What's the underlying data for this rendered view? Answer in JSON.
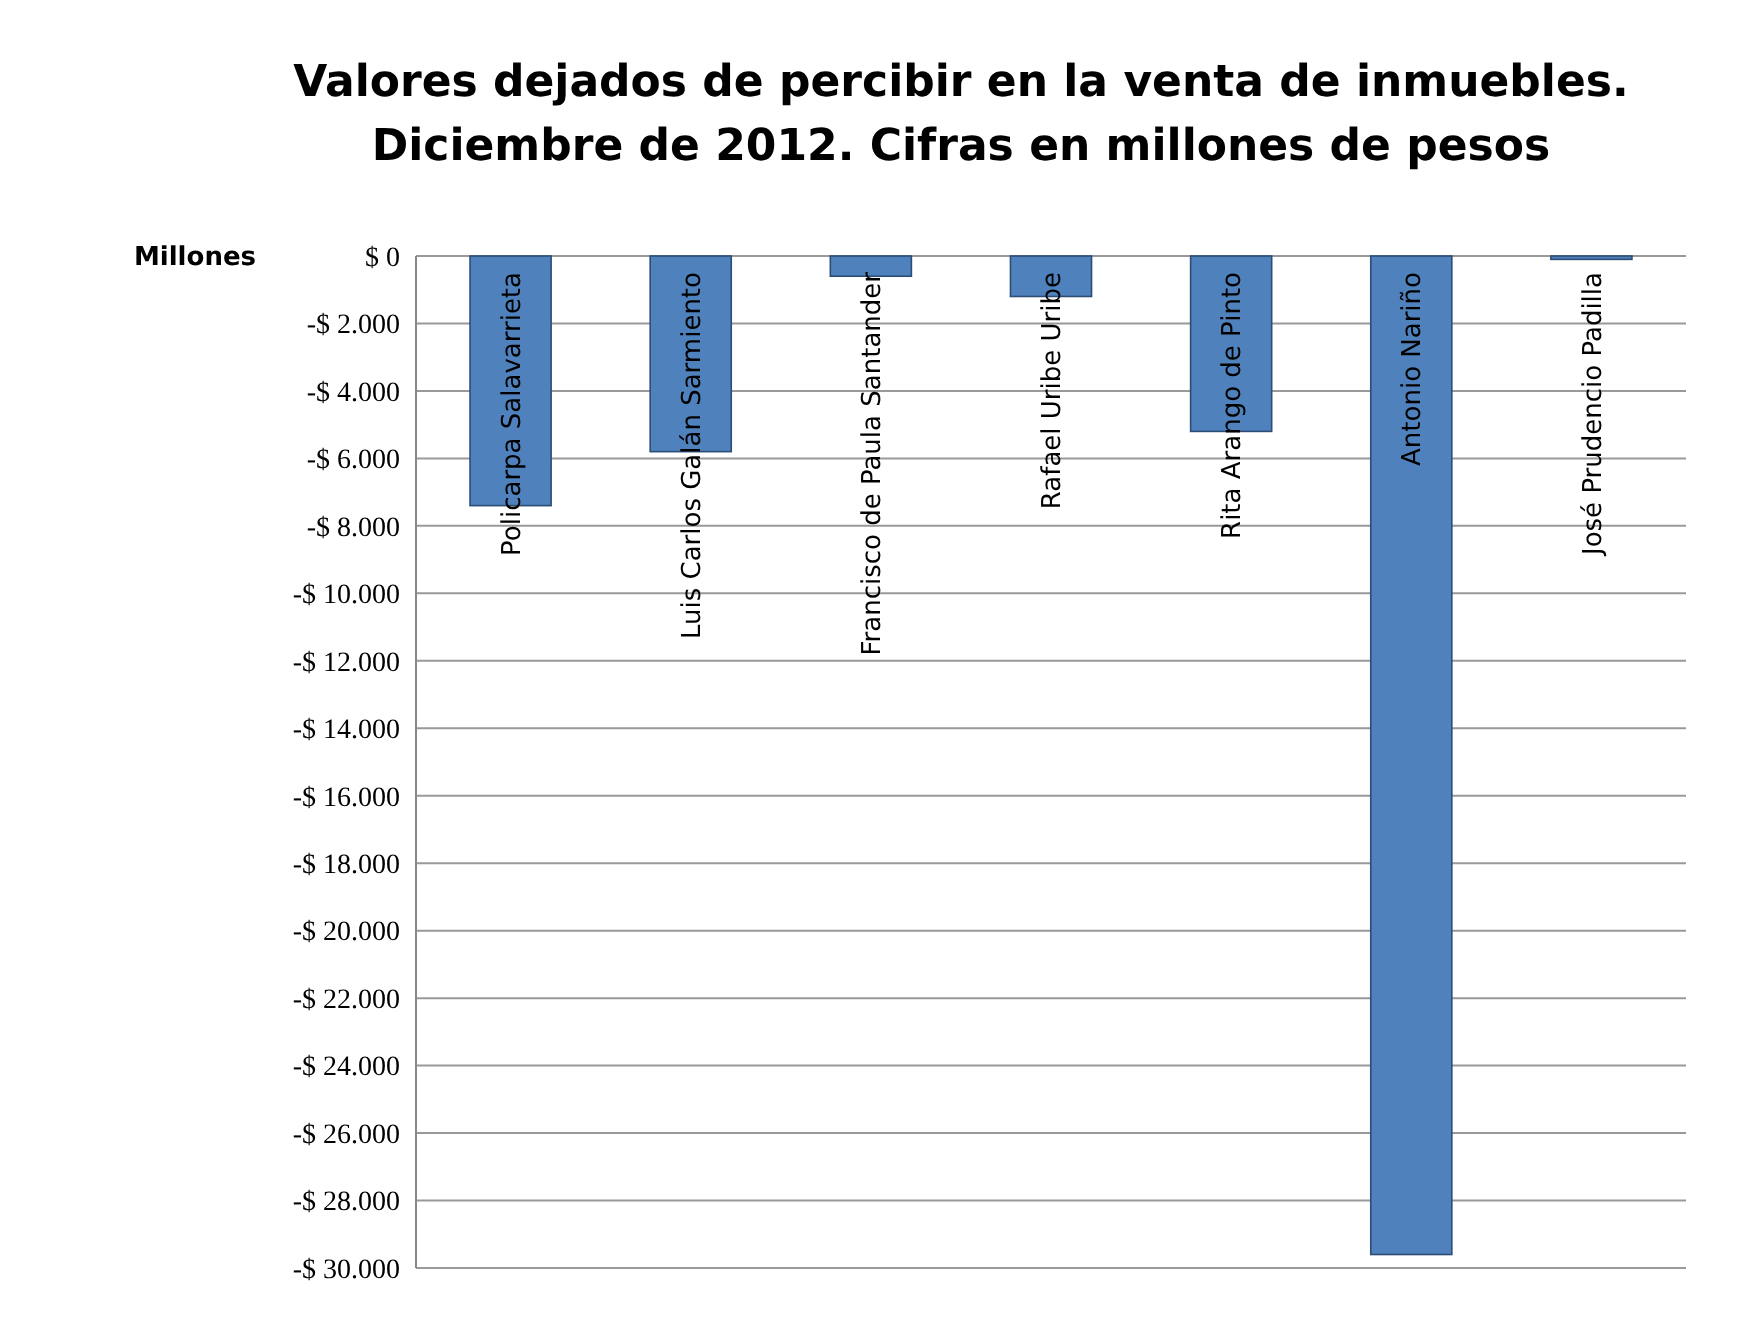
{
  "chart_data": {
    "type": "bar",
    "title": "Valores dejados de percibir en la venta de inmuebles. Diciembre de 2012. Cifras en millones de pesos",
    "ylabel": "Millones",
    "categories": [
      "Policarpa Salavarrieta",
      "Luis Carlos Galán Sarmiento",
      "Francisco de Paula Santander",
      "Rafael Uribe Uribe",
      "Rita Arango de Pinto",
      "Antonio Nariño",
      "José Prudencio Padilla"
    ],
    "values": [
      -7400,
      -5800,
      -600,
      -1200,
      -5200,
      -29600,
      -100
    ],
    "color": "#4f81bd",
    "ylim": [
      -30000,
      0
    ],
    "yticks": [
      {
        "value": 0,
        "label": "$ 0"
      },
      {
        "value": -2000,
        "label": "-$ 2.000"
      },
      {
        "value": -4000,
        "label": "-$ 4.000"
      },
      {
        "value": -6000,
        "label": "-$ 6.000"
      },
      {
        "value": -8000,
        "label": "-$ 8.000"
      },
      {
        "value": -10000,
        "label": "-$ 10.000"
      },
      {
        "value": -12000,
        "label": "-$ 12.000"
      },
      {
        "value": -14000,
        "label": "-$ 14.000"
      },
      {
        "value": -16000,
        "label": "-$ 16.000"
      },
      {
        "value": -18000,
        "label": "-$ 18.000"
      },
      {
        "value": -20000,
        "label": "-$ 20.000"
      },
      {
        "value": -22000,
        "label": "-$ 22.000"
      },
      {
        "value": -24000,
        "label": "-$ 24.000"
      },
      {
        "value": -26000,
        "label": "-$ 26.000"
      },
      {
        "value": -28000,
        "label": "-$ 28.000"
      },
      {
        "value": -30000,
        "label": "-$ 30.000"
      }
    ],
    "grid": "y"
  }
}
